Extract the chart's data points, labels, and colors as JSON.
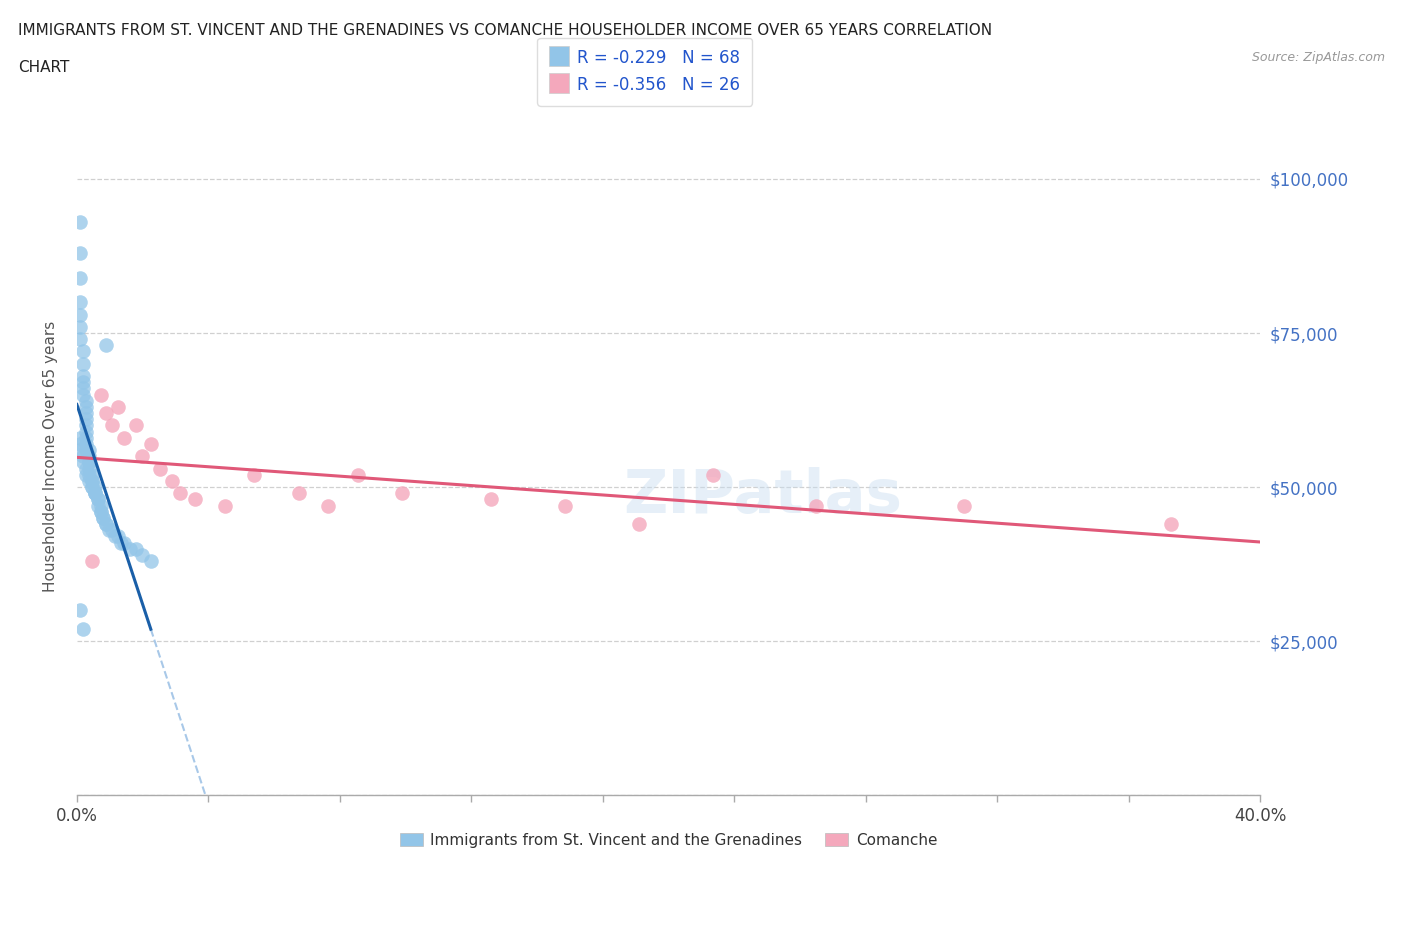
{
  "title_line1": "IMMIGRANTS FROM ST. VINCENT AND THE GRENADINES VS COMANCHE HOUSEHOLDER INCOME OVER 65 YEARS CORRELATION",
  "title_line2": "CHART",
  "source": "Source: ZipAtlas.com",
  "ylabel": "Householder Income Over 65 years",
  "xlim": [
    0.0,
    0.4
  ],
  "ylim": [
    0,
    110000
  ],
  "yticks": [
    0,
    25000,
    50000,
    75000,
    100000
  ],
  "ytick_labels": [
    "",
    "$25,000",
    "$50,000",
    "$75,000",
    "$100,000"
  ],
  "xtick_labels_shown": {
    "0.0": "0.0%",
    "0.40": "40.0%"
  },
  "blue_R": -0.229,
  "blue_N": 68,
  "pink_R": -0.356,
  "pink_N": 26,
  "blue_color": "#92c5e8",
  "pink_color": "#f4a8bc",
  "blue_line_color": "#1a5fa8",
  "pink_line_color": "#e05878",
  "blue_dash_color": "#a8c8e8",
  "watermark": "ZIPatlas",
  "blue_scatter_x": [
    0.001,
    0.001,
    0.001,
    0.001,
    0.001,
    0.001,
    0.001,
    0.002,
    0.002,
    0.002,
    0.002,
    0.002,
    0.002,
    0.003,
    0.003,
    0.003,
    0.003,
    0.003,
    0.003,
    0.003,
    0.003,
    0.003,
    0.004,
    0.004,
    0.004,
    0.004,
    0.004,
    0.004,
    0.005,
    0.005,
    0.005,
    0.005,
    0.006,
    0.006,
    0.006,
    0.007,
    0.007,
    0.007,
    0.008,
    0.008,
    0.008,
    0.009,
    0.009,
    0.01,
    0.01,
    0.011,
    0.012,
    0.013,
    0.014,
    0.015,
    0.016,
    0.018,
    0.02,
    0.022,
    0.025,
    0.001,
    0.001,
    0.001,
    0.002,
    0.002,
    0.003,
    0.003,
    0.004,
    0.005,
    0.006,
    0.001,
    0.002,
    0.01
  ],
  "blue_scatter_y": [
    93000,
    88000,
    84000,
    80000,
    78000,
    76000,
    74000,
    72000,
    70000,
    68000,
    67000,
    66000,
    65000,
    64000,
    63000,
    62000,
    61000,
    60000,
    59000,
    58000,
    57000,
    56000,
    56000,
    55000,
    54000,
    54000,
    53000,
    52000,
    52000,
    51000,
    51000,
    50000,
    50000,
    49000,
    49000,
    48000,
    48000,
    47000,
    47000,
    46000,
    46000,
    45000,
    45000,
    44000,
    44000,
    43000,
    43000,
    42000,
    42000,
    41000,
    41000,
    40000,
    40000,
    39000,
    38000,
    58000,
    57000,
    56000,
    55000,
    54000,
    53000,
    52000,
    51000,
    50000,
    49000,
    30000,
    27000,
    73000
  ],
  "pink_scatter_x": [
    0.008,
    0.01,
    0.012,
    0.014,
    0.016,
    0.02,
    0.022,
    0.025,
    0.028,
    0.032,
    0.035,
    0.04,
    0.05,
    0.06,
    0.075,
    0.085,
    0.095,
    0.11,
    0.14,
    0.165,
    0.19,
    0.215,
    0.25,
    0.3,
    0.37,
    0.005
  ],
  "pink_scatter_y": [
    65000,
    62000,
    60000,
    63000,
    58000,
    60000,
    55000,
    57000,
    53000,
    51000,
    49000,
    48000,
    47000,
    52000,
    49000,
    47000,
    52000,
    49000,
    48000,
    47000,
    44000,
    52000,
    47000,
    47000,
    44000,
    38000
  ],
  "legend1_label": "R = -0.229   N = 68",
  "legend2_label": "R = -0.356   N = 26",
  "bottom_legend1": "Immigrants from St. Vincent and the Grenadines",
  "bottom_legend2": "Comanche"
}
